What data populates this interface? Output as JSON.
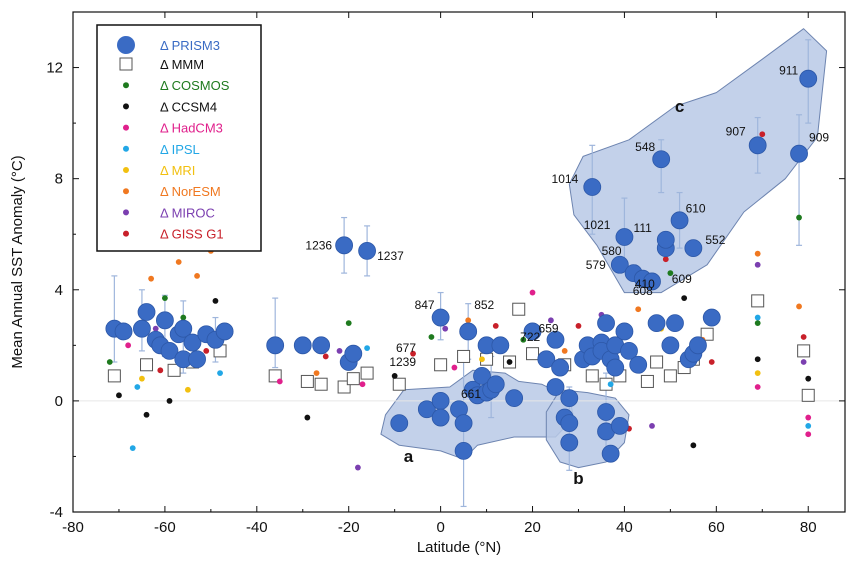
{
  "chart_data": {
    "type": "scatter",
    "xlabel": "Latitude (°N)",
    "ylabel": "Mean Annual SST Anomaly (°C)",
    "xlim": [
      -80,
      88
    ],
    "ylim": [
      -4,
      14
    ],
    "xticks": [
      -80,
      -60,
      -40,
      -20,
      0,
      20,
      40,
      60,
      80
    ],
    "yticks": [
      -4,
      0,
      4,
      8,
      12
    ],
    "grid": false,
    "legend_position": "top-left",
    "legend": [
      {
        "label": "Δ PRISM3",
        "color": "#3a6bc4",
        "symbol": "large-circle"
      },
      {
        "label": "Δ MMM",
        "color": "#111111",
        "symbol": "open-square"
      },
      {
        "label": "Δ COSMOS",
        "color": "#1e7a1e",
        "symbol": "dot"
      },
      {
        "label": "Δ CCSM4",
        "color": "#111111",
        "symbol": "dot"
      },
      {
        "label": "Δ HadCM3",
        "color": "#e0208c",
        "symbol": "dot"
      },
      {
        "label": "Δ IPSL",
        "color": "#22a7e6",
        "symbol": "dot"
      },
      {
        "label": "Δ MRI",
        "color": "#f2c010",
        "symbol": "dot"
      },
      {
        "label": "Δ NorESM",
        "color": "#f07820",
        "symbol": "dot"
      },
      {
        "label": "Δ MIROC",
        "color": "#7b3fb0",
        "symbol": "dot"
      },
      {
        "label": "Δ GISS G1",
        "color": "#c8202a",
        "symbol": "dot"
      }
    ],
    "series": [
      {
        "name": "Δ PRISM3",
        "points": [
          [
            -71,
            2.6
          ],
          [
            -69,
            2.5
          ],
          [
            -65,
            2.6
          ],
          [
            -64,
            3.2
          ],
          [
            -62,
            2.2
          ],
          [
            -61,
            2.0
          ],
          [
            -60,
            2.9
          ],
          [
            -59,
            1.8
          ],
          [
            -57,
            2.4
          ],
          [
            -56,
            1.5
          ],
          [
            -56,
            2.6
          ],
          [
            -54,
            2.1
          ],
          [
            -53,
            1.5
          ],
          [
            -51,
            2.4
          ],
          [
            -49,
            2.2
          ],
          [
            -47,
            2.5
          ],
          [
            -36,
            2.0
          ],
          [
            -30,
            2.0
          ],
          [
            -26,
            2.0
          ],
          [
            -21,
            5.6
          ],
          [
            -20,
            1.4
          ],
          [
            -19,
            1.7
          ],
          [
            -16,
            5.4
          ],
          [
            -9,
            -0.8
          ],
          [
            -3,
            -0.3
          ],
          [
            0,
            3.0
          ],
          [
            0,
            0.0
          ],
          [
            0,
            -0.6
          ],
          [
            4,
            -0.3
          ],
          [
            5,
            -0.8
          ],
          [
            5,
            -1.8
          ],
          [
            6,
            2.5
          ],
          [
            7,
            0.4
          ],
          [
            8,
            0.2
          ],
          [
            9,
            0.9
          ],
          [
            10,
            2.0
          ],
          [
            10,
            0.3
          ],
          [
            11,
            0.4
          ],
          [
            12,
            0.6
          ],
          [
            13,
            2.0
          ],
          [
            16,
            0.1
          ],
          [
            20,
            2.5
          ],
          [
            23,
            1.5
          ],
          [
            25,
            0.5
          ],
          [
            25,
            2.2
          ],
          [
            26,
            1.2
          ],
          [
            27,
            -0.6
          ],
          [
            28,
            -0.8
          ],
          [
            28,
            -1.5
          ],
          [
            28,
            0.1
          ],
          [
            31,
            1.5
          ],
          [
            32,
            2.0
          ],
          [
            33,
            1.6
          ],
          [
            33,
            7.7
          ],
          [
            35,
            2.1
          ],
          [
            35,
            1.8
          ],
          [
            36,
            -0.4
          ],
          [
            36,
            -1.1
          ],
          [
            36,
            2.8
          ],
          [
            37,
            1.5
          ],
          [
            37,
            -1.9
          ],
          [
            38,
            2.0
          ],
          [
            38,
            1.2
          ],
          [
            39,
            -0.9
          ],
          [
            39,
            4.9
          ],
          [
            40,
            5.9
          ],
          [
            40,
            2.5
          ],
          [
            41,
            1.8
          ],
          [
            42,
            4.6
          ],
          [
            43,
            1.3
          ],
          [
            44,
            4.4
          ],
          [
            46,
            4.3
          ],
          [
            47,
            2.8
          ],
          [
            48,
            8.7
          ],
          [
            49,
            5.5
          ],
          [
            49,
            5.8
          ],
          [
            50,
            2.0
          ],
          [
            51,
            2.8
          ],
          [
            52,
            6.5
          ],
          [
            54,
            1.5
          ],
          [
            55,
            1.7
          ],
          [
            55,
            5.5
          ],
          [
            56,
            2.0
          ],
          [
            59,
            3.0
          ],
          [
            69,
            9.2
          ],
          [
            78,
            8.9
          ],
          [
            80,
            11.6
          ]
        ]
      },
      {
        "name": "Δ MMM",
        "points": [
          [
            -71,
            0.9
          ],
          [
            -64,
            1.3
          ],
          [
            -58,
            1.1
          ],
          [
            -54,
            1.4
          ],
          [
            -48,
            1.8
          ],
          [
            -36,
            0.9
          ],
          [
            -29,
            0.7
          ],
          [
            -26,
            0.6
          ],
          [
            -21,
            0.5
          ],
          [
            -19,
            0.8
          ],
          [
            -16,
            1.0
          ],
          [
            -9,
            0.6
          ],
          [
            0,
            1.3
          ],
          [
            5,
            1.6
          ],
          [
            10,
            1.5
          ],
          [
            15,
            1.4
          ],
          [
            17,
            3.3
          ],
          [
            20,
            1.7
          ],
          [
            27,
            1.3
          ],
          [
            33,
            0.9
          ],
          [
            36,
            0.6
          ],
          [
            39,
            0.9
          ],
          [
            45,
            0.7
          ],
          [
            47,
            1.4
          ],
          [
            50,
            0.9
          ],
          [
            53,
            1.2
          ],
          [
            55,
            1.5
          ],
          [
            58,
            2.4
          ],
          [
            69,
            3.6
          ],
          [
            79,
            1.8
          ],
          [
            80,
            0.2
          ]
        ]
      }
    ],
    "model_dots": [
      [
        -72,
        1.4,
        "COSMOS"
      ],
      [
        -70,
        0.2,
        "CCSM4"
      ],
      [
        -68,
        2.0,
        "HadCM3"
      ],
      [
        -66,
        0.5,
        "IPSL"
      ],
      [
        -65,
        0.8,
        "MRI"
      ],
      [
        -63,
        4.4,
        "NorESM"
      ],
      [
        -62,
        2.6,
        "MIROC"
      ],
      [
        -61,
        1.1,
        "GISS G1"
      ],
      [
        -60,
        3.7,
        "COSMOS"
      ],
      [
        -59,
        0.0,
        "CCSM4"
      ],
      [
        -58,
        1.7,
        "HadCM3"
      ],
      [
        -57,
        5.0,
        "NorESM"
      ],
      [
        -56,
        3.0,
        "COSMOS"
      ],
      [
        -55,
        0.4,
        "MRI"
      ],
      [
        -54,
        2.0,
        "MIROC"
      ],
      [
        -53,
        4.5,
        "NorESM"
      ],
      [
        -51,
        1.8,
        "GISS G1"
      ],
      [
        -50,
        5.4,
        "NorESM"
      ],
      [
        -49,
        3.6,
        "CCSM4"
      ],
      [
        -48,
        1.0,
        "IPSL"
      ],
      [
        -67,
        -1.7,
        "IPSL"
      ],
      [
        -64,
        -0.5,
        "CCSM4"
      ],
      [
        -36,
        1.8,
        "COSMOS"
      ],
      [
        -35,
        0.7,
        "HadCM3"
      ],
      [
        -30,
        1.9,
        "MRI"
      ],
      [
        -29,
        -0.6,
        "CCSM4"
      ],
      [
        -27,
        1.0,
        "NorESM"
      ],
      [
        -25,
        1.6,
        "GISS G1"
      ],
      [
        -22,
        1.8,
        "MIROC"
      ],
      [
        -20,
        2.8,
        "COSMOS"
      ],
      [
        -18,
        -2.4,
        "MIROC"
      ],
      [
        -17,
        0.6,
        "HadCM3"
      ],
      [
        -16,
        1.9,
        "IPSL"
      ],
      [
        -10,
        0.9,
        "CCSM4"
      ],
      [
        -6,
        1.7,
        "GISS G1"
      ],
      [
        -2,
        2.3,
        "COSMOS"
      ],
      [
        1,
        2.6,
        "MIROC"
      ],
      [
        3,
        1.2,
        "HadCM3"
      ],
      [
        6,
        2.9,
        "NorESM"
      ],
      [
        9,
        1.5,
        "MRI"
      ],
      [
        12,
        2.7,
        "GISS G1"
      ],
      [
        15,
        1.4,
        "CCSM4"
      ],
      [
        18,
        2.2,
        "COSMOS"
      ],
      [
        20,
        3.9,
        "HadCM3"
      ],
      [
        22,
        1.6,
        "IPSL"
      ],
      [
        24,
        2.9,
        "MIROC"
      ],
      [
        27,
        1.8,
        "NorESM"
      ],
      [
        30,
        2.7,
        "GISS G1"
      ],
      [
        33,
        1.5,
        "COSMOS"
      ],
      [
        35,
        3.1,
        "MIROC"
      ],
      [
        37,
        0.6,
        "IPSL"
      ],
      [
        39,
        2.3,
        "HadCM3"
      ],
      [
        41,
        -1.0,
        "GISS G1"
      ],
      [
        43,
        3.3,
        "NorESM"
      ],
      [
        44,
        1.2,
        "CCSM4"
      ],
      [
        46,
        -0.9,
        "MIROC"
      ],
      [
        48,
        2.6,
        "MRI"
      ],
      [
        50,
        4.6,
        "COSMOS"
      ],
      [
        51,
        2.0,
        "HadCM3"
      ],
      [
        53,
        3.7,
        "CCSM4"
      ],
      [
        55,
        -1.6,
        "CCSM4"
      ],
      [
        57,
        2.2,
        "NorESM"
      ],
      [
        59,
        1.4,
        "GISS G1"
      ],
      [
        69,
        5.3,
        "NorESM"
      ],
      [
        69,
        4.9,
        "MIROC"
      ],
      [
        69,
        3.0,
        "IPSL"
      ],
      [
        69,
        2.8,
        "COSMOS"
      ],
      [
        69,
        1.5,
        "CCSM4"
      ],
      [
        69,
        1.0,
        "MRI"
      ],
      [
        69,
        0.5,
        "HadCM3"
      ],
      [
        78,
        6.6,
        "COSMOS"
      ],
      [
        78,
        3.4,
        "NorESM"
      ],
      [
        79,
        2.3,
        "GISS G1"
      ],
      [
        79,
        1.4,
        "MIROC"
      ],
      [
        80,
        0.8,
        "CCSM4"
      ],
      [
        80,
        -0.6,
        "HadCM3"
      ],
      [
        80,
        -0.9,
        "IPSL"
      ],
      [
        80,
        -1.2,
        "HadCM3"
      ],
      [
        70,
        9.6,
        "GISS G1"
      ],
      [
        49,
        5.1,
        "GISS G1"
      ]
    ],
    "error_bars": [
      [
        -71,
        1.4,
        4.5
      ],
      [
        -65,
        1.8,
        4.0
      ],
      [
        -60,
        1.6,
        3.8
      ],
      [
        -56,
        1.0,
        3.6
      ],
      [
        -49,
        1.4,
        3.0
      ],
      [
        -36,
        1.2,
        3.7
      ],
      [
        -21,
        4.6,
        6.6
      ],
      [
        -16,
        4.5,
        6.3
      ],
      [
        0,
        2.2,
        3.9
      ],
      [
        5,
        -3.8,
        1.5
      ],
      [
        6,
        1.5,
        3.5
      ],
      [
        11,
        -0.6,
        1.6
      ],
      [
        28,
        -2.5,
        0.5
      ],
      [
        33,
        6.0,
        9.2
      ],
      [
        36,
        -2.0,
        1.0
      ],
      [
        40,
        4.9,
        7.3
      ],
      [
        48,
        7.5,
        9.4
      ],
      [
        52,
        5.5,
        7.5
      ],
      [
        69,
        8.2,
        10.2
      ],
      [
        78,
        5.6,
        10.3
      ],
      [
        80,
        10.0,
        13.0
      ]
    ],
    "annotations": [
      {
        "text": "1236",
        "x": -21,
        "y": 5.6
      },
      {
        "text": "1237",
        "x": -16,
        "y": 5.4
      },
      {
        "text": "847",
        "x": 0,
        "y": 3.1
      },
      {
        "text": "852",
        "x": 6,
        "y": 3.1
      },
      {
        "text": "677",
        "x": -1,
        "y": 1.9
      },
      {
        "text": "722",
        "x": 16,
        "y": 2.3
      },
      {
        "text": "659",
        "x": 20,
        "y": 2.6
      },
      {
        "text": "1239",
        "x": -1,
        "y": 1.4
      },
      {
        "text": "661",
        "x": 4,
        "y": 0.6
      },
      {
        "text": "1014",
        "x": 33,
        "y": 7.7
      },
      {
        "text": "548",
        "x": 48,
        "y": 8.7
      },
      {
        "text": "911",
        "x": 80,
        "y": 11.6
      },
      {
        "text": "907",
        "x": 69,
        "y": 9.2
      },
      {
        "text": "909",
        "x": 78,
        "y": 8.9
      },
      {
        "text": "610",
        "x": 52,
        "y": 6.5
      },
      {
        "text": "1021",
        "x": 40,
        "y": 5.9
      },
      {
        "text": "111",
        "x": 49,
        "y": 5.8
      },
      {
        "text": "552",
        "x": 55,
        "y": 5.5
      },
      {
        "text": "580",
        "x": 42,
        "y": 5.4
      },
      {
        "text": "579",
        "x": 39,
        "y": 4.9
      },
      {
        "text": "410",
        "x": 44,
        "y": 4.5
      },
      {
        "text": "609",
        "x": 49,
        "y": 4.6
      },
      {
        "text": "608",
        "x": 44,
        "y": 3.6
      }
    ],
    "regions": [
      {
        "label": "a",
        "points": [
          [
            -12,
            -0.5
          ],
          [
            -8,
            0.4
          ],
          [
            2,
            0.5
          ],
          [
            7,
            1.1
          ],
          [
            14,
            1.0
          ],
          [
            17,
            0.7
          ],
          [
            22,
            0.6
          ],
          [
            28,
            0.1
          ],
          [
            29,
            -0.6
          ],
          [
            25,
            -1.3
          ],
          [
            16,
            -1.3
          ],
          [
            8,
            -1.6
          ],
          [
            5,
            -2.1
          ],
          [
            0,
            -1.8
          ],
          [
            -9,
            -1.6
          ],
          [
            -13,
            -1.2
          ]
        ],
        "label_at": [
          -7,
          -2.2
        ]
      },
      {
        "label": "b",
        "points": [
          [
            23,
            -0.4
          ],
          [
            26,
            0.4
          ],
          [
            32,
            0.3
          ],
          [
            38,
            0.1
          ],
          [
            41,
            -0.5
          ],
          [
            40,
            -1.5
          ],
          [
            36,
            -2.2
          ],
          [
            30,
            -2.4
          ],
          [
            26,
            -2.2
          ],
          [
            23,
            -1.4
          ]
        ],
        "label_at": [
          30,
          -3.0
        ]
      },
      {
        "label": "c",
        "points": [
          [
            28,
            7.8
          ],
          [
            31,
            8.8
          ],
          [
            41,
            9.4
          ],
          [
            51,
            10.6
          ],
          [
            60,
            11.1
          ],
          [
            70,
            12.3
          ],
          [
            79,
            13.4
          ],
          [
            84,
            12.6
          ],
          [
            82,
            9.5
          ],
          [
            75,
            8.0
          ],
          [
            66,
            6.8
          ],
          [
            58,
            4.9
          ],
          [
            48,
            3.9
          ],
          [
            40,
            3.9
          ],
          [
            34,
            5.6
          ],
          [
            29,
            6.7
          ]
        ],
        "label_at": [
          52,
          10.4
        ]
      }
    ]
  }
}
